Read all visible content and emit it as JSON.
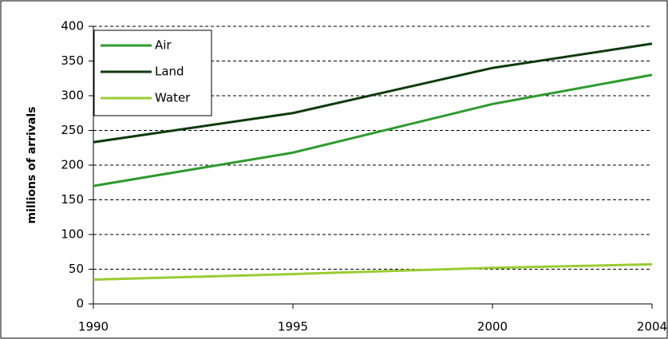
{
  "chart_data": {
    "type": "line",
    "y_label": "millions of arrivals",
    "x": [
      1990,
      1995,
      2000,
      2004
    ],
    "series": [
      {
        "name": "Air",
        "color": "#2e9a2e",
        "values": [
          170,
          218,
          288,
          330
        ]
      },
      {
        "name": "Land",
        "color": "#0d3a0d",
        "values": [
          233,
          275,
          340,
          375
        ]
      },
      {
        "name": "Water",
        "color": "#99cc33",
        "values": [
          35,
          43,
          52,
          57
        ]
      }
    ],
    "xlim": [
      1990,
      2004
    ],
    "xticks": [
      1990,
      1995,
      2000,
      2004
    ],
    "ylim": [
      0,
      400
    ],
    "yticks": [
      0,
      50,
      100,
      150,
      200,
      250,
      300,
      350,
      400
    ],
    "grid": true,
    "legend": "top-left"
  }
}
